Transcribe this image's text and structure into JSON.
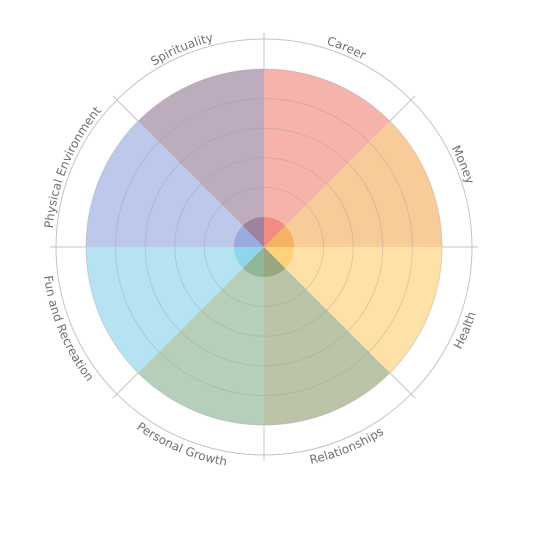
{
  "chart_data": {
    "type": "polar-area",
    "categories": [
      "Career",
      "Money",
      "Health",
      "Relationships",
      "Personal Growth",
      "Fun and Recreation",
      "Physical Environment",
      "Spirituality"
    ],
    "values": [
      10,
      10,
      10,
      10,
      10,
      10,
      10,
      10
    ],
    "colors": [
      "#f08a7e",
      "#f2b062",
      "#fdd177",
      "#98a47a",
      "#8fb597",
      "#8dd4ea",
      "#9aaade",
      "#9a7f9b"
    ],
    "center_value": 1,
    "rlim": [
      0,
      12
    ],
    "rings": 5,
    "grid": true,
    "legend": "none"
  }
}
